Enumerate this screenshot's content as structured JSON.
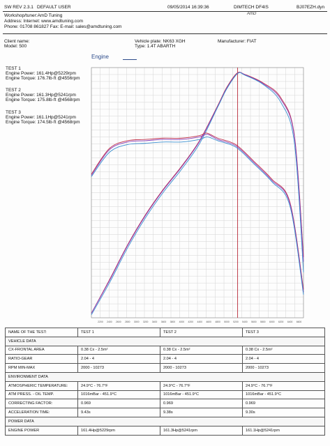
{
  "header": {
    "software": "SW REV 2.3.1",
    "user": "DEFAULT USER",
    "datetime": "09/05/2014 16:39:36",
    "device": "DIMTECH DF4IS",
    "file": "BJ07EZH.dyn",
    "logo": "AmD",
    "workshop": "Workshop/tuner:AmD Tuning",
    "address": "Address:  Internet:  www.amdtuning.com",
    "phone": "Phone: 01708 861827 Fax:  E-mail: sales@amdtuning.com"
  },
  "client": {
    "name": "Client name:",
    "model": "Model: 500",
    "plate": "Vehicle plate: NK63 XGH",
    "type": "Type: 1.4T ABARTH",
    "manufacturer": "Manufacturer: FIAT"
  },
  "chart_title": "Engine",
  "tests": [
    {
      "title": "TEST 1",
      "power": "Engine Power: 161.4Hp@5229rpm",
      "torque": "Engine Torque: 176.7lb·ft @4556rpm"
    },
    {
      "title": "TEST 2",
      "power": "Engine Power: 161.3Hp@5241rpm",
      "torque": "Engine Torque: 175.8lb·ft @4568rpm"
    },
    {
      "title": "TEST 3",
      "power": "Engine Power: 161.1Hp@5241rpm",
      "torque": "Engine Torque: 174.5lb·ft @4568rpm"
    }
  ],
  "table": {
    "header": [
      "NAME OF THE TEST:",
      "TEST 1",
      "TEST 2",
      "TEST 3"
    ],
    "rows": [
      {
        "section": true,
        "label": "VEHICLE DATA"
      },
      {
        "label": "CX-FRONTAL AREA",
        "values": [
          "0.38 Cx - 2.5m²",
          "0.38 Cx - 2.5m²",
          "0.38 Cx - 2.5m²"
        ]
      },
      {
        "label": "RATIO-GEAR",
        "values": [
          "2.04 - 4",
          "2.04 - 4",
          "2.04 - 4"
        ]
      },
      {
        "label": "RPM MIN-MAX",
        "values": [
          "2000 - 10273",
          "2000 - 10273",
          "2000 - 10273"
        ]
      },
      {
        "section": true,
        "label": "ENVIRONMENT DATA"
      },
      {
        "label": "ATMOSPHERIC TEMPERATURE:",
        "values": [
          "24.9°C - 76.7°F",
          "24.9°C - 76.7°F",
          "24.9°C - 76.7°F"
        ]
      },
      {
        "label": "ATM PRESS. - OIL TEMP.",
        "values": [
          "1016mBar - 451.9°C",
          "1016mBar - 451.9°C",
          "1016mBar - 451.9°C"
        ]
      },
      {
        "label": "CORRECTING FACTOR:",
        "values": [
          "0.969",
          "0.969",
          "0.969"
        ]
      },
      {
        "label": "ACCELERATION TIME:",
        "values": [
          "9.43s",
          "9.38s",
          "9.30s"
        ]
      },
      {
        "section": true,
        "label": "POWER DATA"
      },
      {
        "label": "ENGINE POWER",
        "values": [
          "161.4Hp@5229rpm",
          "161.3Hp@5241rpm",
          "161.1Hp@5241rpm"
        ]
      }
    ]
  },
  "chart_data": {
    "type": "line",
    "title": "Engine",
    "x_range": [
      2000,
      6700
    ],
    "x_ticks": [
      "2200",
      "2400",
      "2600",
      "2800",
      "3000",
      "3200",
      "3400",
      "3600",
      "3800",
      "4000",
      "4200",
      "4400",
      "4600",
      "4800",
      "5000",
      "5200",
      "5400",
      "5600",
      "5800",
      "6000",
      "6200",
      "6400",
      "6600"
    ],
    "left_axis": {
      "range": [
        0,
        165
      ]
    },
    "right_axis": {
      "range": [
        0,
        195
      ]
    },
    "colors": {
      "test1": "#c0304a",
      "test2": "#8a3fb8",
      "test3": "#3a8fd0",
      "test3_power_low": "#3aa040",
      "marker": "#b01020"
    },
    "marker_rpm": 5241,
    "series": [
      {
        "name": "TEST 1",
        "quantity": "power",
        "axis": "left",
        "x": [
          2000,
          2400,
          2800,
          3200,
          3600,
          4000,
          4400,
          4800,
          5000,
          5229,
          5400,
          5800,
          6200,
          6500,
          6700
        ],
        "y": [
          3,
          25,
          48,
          68,
          85,
          100,
          117,
          140,
          152,
          161.4,
          160.5,
          155,
          145,
          120,
          40
        ]
      },
      {
        "name": "TEST 2",
        "quantity": "power",
        "axis": "left",
        "x": [
          2000,
          2400,
          2800,
          3200,
          3600,
          4000,
          4400,
          4800,
          5000,
          5241,
          5400,
          5800,
          6200,
          6500,
          6700
        ],
        "y": [
          3,
          24.5,
          47.5,
          67.5,
          84.5,
          99.5,
          116.5,
          139.5,
          151.5,
          161.3,
          160.3,
          154.5,
          144,
          119,
          37
        ]
      },
      {
        "name": "TEST 3",
        "quantity": "power",
        "axis": "left",
        "x": [
          2000,
          2400,
          2800,
          3200,
          3600,
          4000,
          4400,
          4800,
          5000,
          5241,
          5400,
          5800,
          6200,
          6500,
          6700
        ],
        "y": [
          2,
          23,
          46,
          66,
          83,
          98,
          115,
          139,
          151,
          161.1,
          160,
          154,
          142,
          115,
          30
        ]
      },
      {
        "name": "TEST 1",
        "quantity": "torque",
        "axis": "right",
        "x": [
          2000,
          2400,
          2800,
          3200,
          3600,
          4000,
          4400,
          4556,
          4800,
          5200,
          5600,
          6000,
          6400,
          6700
        ],
        "y": [
          112,
          132,
          138,
          139,
          140,
          140,
          142,
          176.7,
          140,
          135,
          122,
          108,
          90,
          22
        ]
      },
      {
        "name": "TEST 2",
        "quantity": "torque",
        "axis": "right",
        "x": [
          2000,
          2400,
          2800,
          3200,
          3600,
          4000,
          4400,
          4568,
          4800,
          5200,
          5600,
          6000,
          6400,
          6700
        ],
        "y": [
          111,
          131,
          137,
          138,
          139,
          139,
          141,
          175.8,
          139,
          134,
          121,
          107,
          89,
          20
        ]
      },
      {
        "name": "TEST 3",
        "quantity": "torque",
        "axis": "right",
        "x": [
          2000,
          2400,
          2800,
          3200,
          3600,
          4000,
          4400,
          4568,
          4800,
          5200,
          5600,
          6000,
          6400,
          6700
        ],
        "y": [
          110,
          129,
          135,
          136,
          137,
          137,
          139,
          174.5,
          138,
          133,
          120,
          106,
          87,
          18
        ]
      }
    ]
  }
}
